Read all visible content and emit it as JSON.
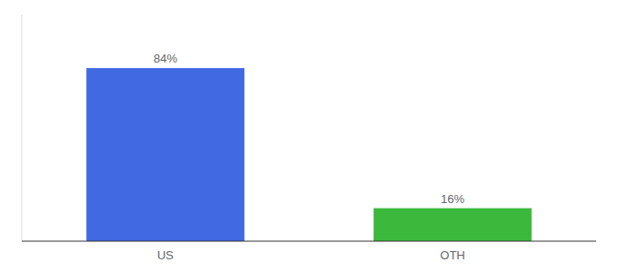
{
  "chart_data": {
    "type": "bar",
    "categories": [
      "US",
      "OTH"
    ],
    "values": [
      84,
      16
    ],
    "value_labels": [
      "84%",
      "16%"
    ],
    "colors": [
      "#4169e1",
      "#3cb83c"
    ],
    "ylim": [
      0,
      110
    ],
    "data_labels": true,
    "tick_labels": "x"
  }
}
